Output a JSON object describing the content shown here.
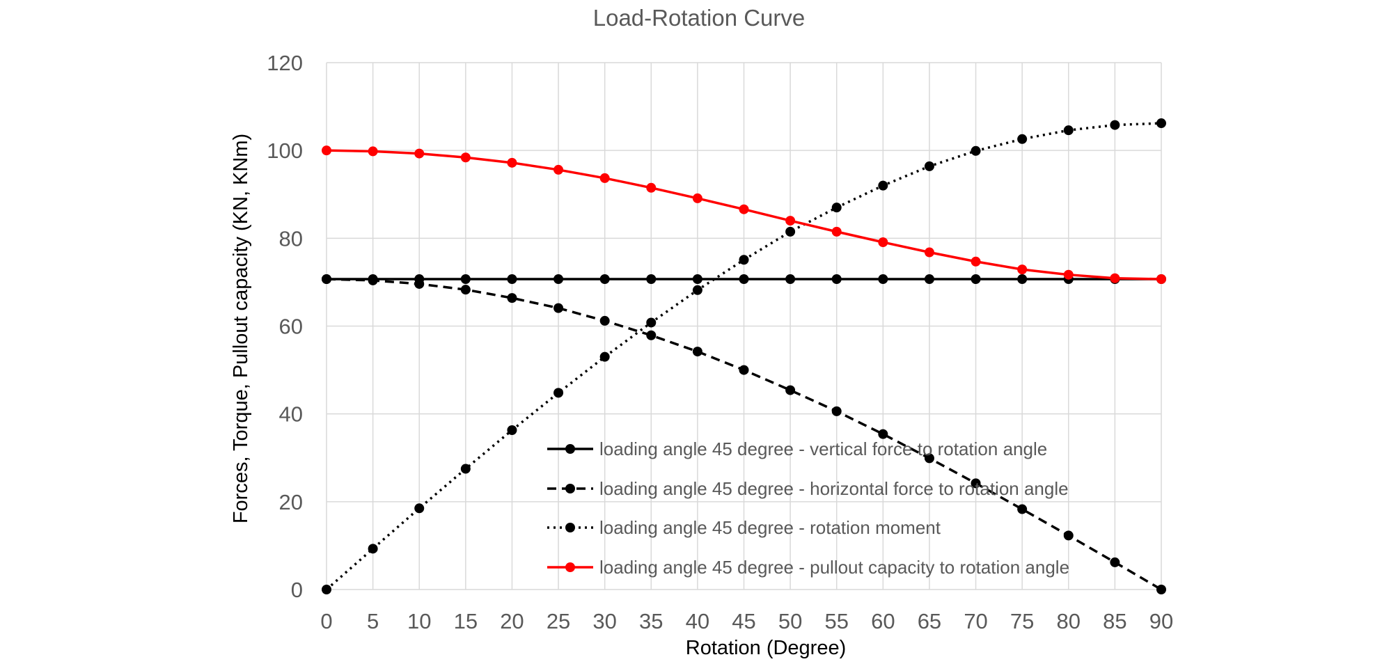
{
  "chart_data": {
    "type": "line",
    "title": "Load-Rotation Curve",
    "xlabel": "Rotation (Degree)",
    "ylabel": "Forces, Torque, Pullout capacity (KN, KNm)",
    "x": [
      0,
      5,
      10,
      15,
      20,
      25,
      30,
      35,
      40,
      45,
      50,
      55,
      60,
      65,
      70,
      75,
      80,
      85,
      90
    ],
    "xticks": [
      "0",
      "5",
      "10",
      "15",
      "20",
      "25",
      "30",
      "35",
      "40",
      "45",
      "50",
      "55",
      "60",
      "65",
      "70",
      "75",
      "80",
      "85",
      "90"
    ],
    "yticks": [
      "0",
      "20",
      "40",
      "60",
      "80",
      "100",
      "120"
    ],
    "xlim": [
      0,
      90
    ],
    "ylim": [
      0,
      120
    ],
    "grid": true,
    "legend_position": "bottom-right",
    "series": [
      {
        "name": "loading angle 45 degree - vertical force to rotation angle",
        "color": "#000000",
        "dash": "solid",
        "values": [
          70.7,
          70.7,
          70.7,
          70.7,
          70.7,
          70.7,
          70.7,
          70.7,
          70.7,
          70.7,
          70.7,
          70.7,
          70.7,
          70.7,
          70.7,
          70.7,
          70.7,
          70.7,
          70.7
        ]
      },
      {
        "name": "loading angle 45 degree - horizontal force to rotation angle",
        "color": "#000000",
        "dash": "dashed",
        "values": [
          70.7,
          70.4,
          69.6,
          68.3,
          66.4,
          64.1,
          61.2,
          57.9,
          54.2,
          50.0,
          45.4,
          40.6,
          35.4,
          29.9,
          24.2,
          18.3,
          12.3,
          6.2,
          0
        ]
      },
      {
        "name": "loading angle 45 degree - rotation moment",
        "color": "#000000",
        "dash": "dotted",
        "values": [
          0,
          9.3,
          18.5,
          27.5,
          36.3,
          44.8,
          53.0,
          60.8,
          68.2,
          75.1,
          81.5,
          87.0,
          92.0,
          96.4,
          99.9,
          102.6,
          104.6,
          105.8,
          106.2
        ]
      },
      {
        "name": "loading angle 45 degree - pullout capacity to rotation angle",
        "color": "#ff0000",
        "dash": "solid",
        "values": [
          100.0,
          99.8,
          99.3,
          98.4,
          97.2,
          95.6,
          93.7,
          91.5,
          89.1,
          86.6,
          84.0,
          81.5,
          79.1,
          76.8,
          74.7,
          72.9,
          71.7,
          70.9,
          70.7
        ]
      }
    ]
  }
}
